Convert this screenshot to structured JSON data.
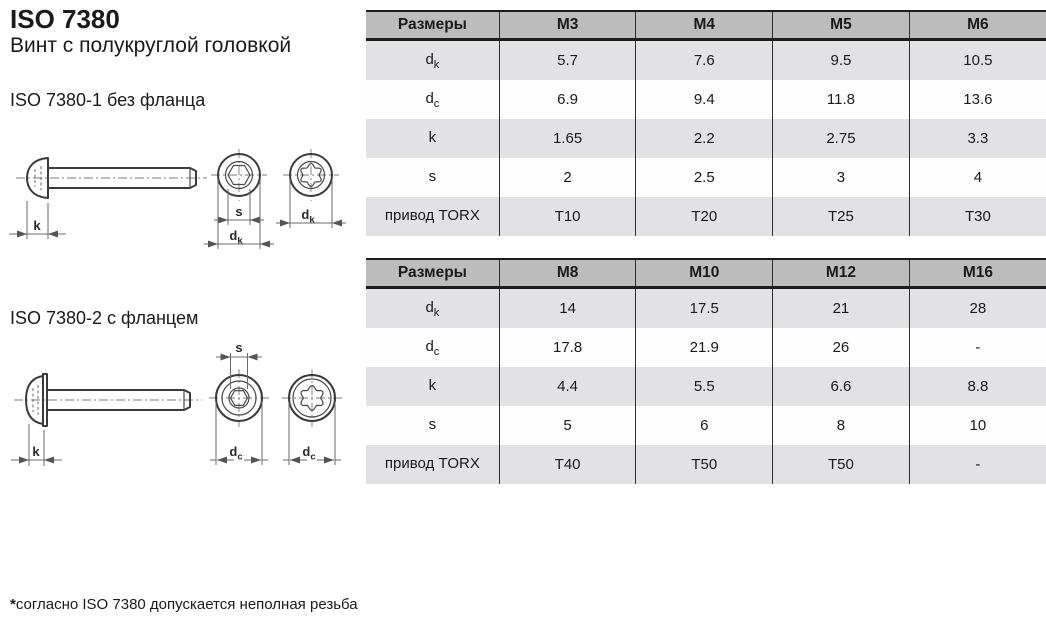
{
  "header": {
    "title": "ISO 7380",
    "subtitle": "Винт с полукруглой головкой"
  },
  "sections": {
    "variant1": "ISO 7380-1 без фланца",
    "variant2": "ISO 7380-2 с фланцем"
  },
  "drawing_labels": {
    "k": "k",
    "s": "s",
    "d": "d",
    "sub_k": "k",
    "sub_c": "c"
  },
  "footnote": {
    "star": "*",
    "text": "согласно ISO 7380 допускается неполная резьба"
  },
  "colors": {
    "table_header_bg": "#bcbcbc",
    "table_stripe_bg": "#e2e2e4",
    "table_border": "#1c1c1c",
    "text": "#1a1a1a",
    "drawing_line": "#3b3b3b"
  },
  "table1": {
    "headers": [
      "Размеры",
      "M3",
      "M4",
      "M5",
      "M6"
    ],
    "rows": [
      {
        "label": "d",
        "sub": "k",
        "values": [
          "5.7",
          "7.6",
          "9.5",
          "10.5"
        ]
      },
      {
        "label": "d",
        "sub": "c",
        "values": [
          "6.9",
          "9.4",
          "11.8",
          "13.6"
        ]
      },
      {
        "label": "k",
        "sub": "",
        "values": [
          "1.65",
          "2.2",
          "2.75",
          "3.3"
        ]
      },
      {
        "label": "s",
        "sub": "",
        "values": [
          "2",
          "2.5",
          "3",
          "4"
        ]
      },
      {
        "label": "привод TORX",
        "sub": "",
        "values": [
          "T10",
          "T20",
          "T25",
          "T30"
        ]
      }
    ]
  },
  "table2": {
    "headers": [
      "Размеры",
      "M8",
      "M10",
      "M12",
      "M16"
    ],
    "rows": [
      {
        "label": "d",
        "sub": "k",
        "values": [
          "14",
          "17.5",
          "21",
          "28"
        ]
      },
      {
        "label": "d",
        "sub": "c",
        "values": [
          "17.8",
          "21.9",
          "26",
          "-"
        ]
      },
      {
        "label": "k",
        "sub": "",
        "values": [
          "4.4",
          "5.5",
          "6.6",
          "8.8"
        ]
      },
      {
        "label": "s",
        "sub": "",
        "values": [
          "5",
          "6",
          "8",
          "10"
        ]
      },
      {
        "label": "привод TORX",
        "sub": "",
        "values": [
          "T40",
          "T50",
          "T50",
          "-"
        ]
      }
    ]
  }
}
